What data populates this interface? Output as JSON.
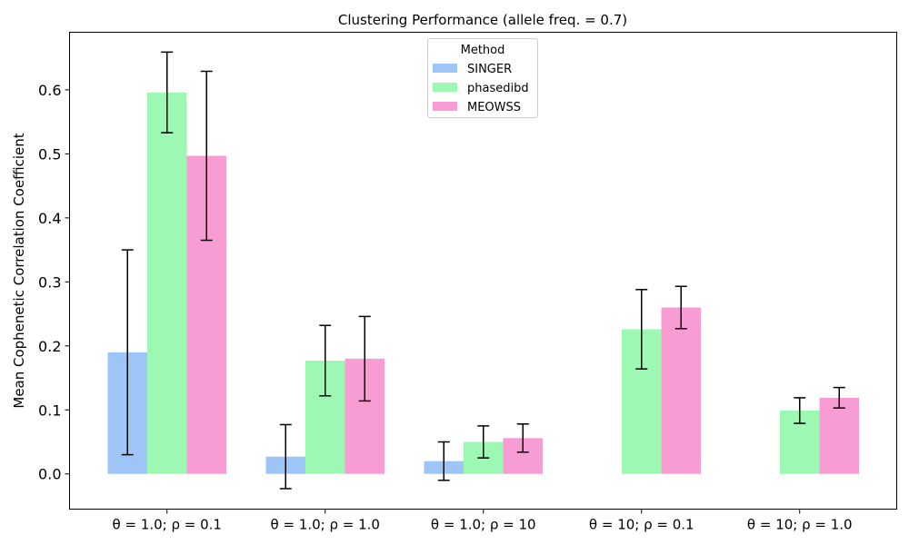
{
  "chart_data": {
    "type": "bar",
    "title": "Clustering Performance (allele freq. = 0.7)",
    "xlabel": "",
    "ylabel": "Mean Cophenetic Correlation Coefficient",
    "ylim": [
      -0.055,
      0.69
    ],
    "yticks": [
      0.0,
      0.1,
      0.2,
      0.3,
      0.4,
      0.5,
      0.6
    ],
    "ytick_labels": [
      "0.0",
      "0.1",
      "0.2",
      "0.3",
      "0.4",
      "0.5",
      "0.6"
    ],
    "categories": [
      "θ = 1.0; ρ = 0.1",
      "θ = 1.0; ρ = 1.0",
      "θ = 1.0; ρ = 10",
      "θ = 10; ρ = 0.1",
      "θ = 10; ρ = 1.0"
    ],
    "legend_title": "Method",
    "legend_position": "top-center",
    "grid": false,
    "series": [
      {
        "name": "SINGER",
        "color": "#9ec5f8",
        "values": [
          0.19,
          0.027,
          0.02,
          null,
          null
        ],
        "errors": [
          0.16,
          0.05,
          0.03,
          null,
          null
        ]
      },
      {
        "name": "phasedibd",
        "color": "#9cf8b3",
        "values": [
          0.596,
          0.177,
          0.05,
          0.226,
          0.099
        ],
        "errors": [
          0.063,
          0.055,
          0.025,
          0.062,
          0.02
        ]
      },
      {
        "name": "MEOWSS",
        "color": "#f79dd3",
        "values": [
          0.497,
          0.18,
          0.056,
          0.26,
          0.119
        ],
        "errors": [
          0.132,
          0.066,
          0.022,
          0.033,
          0.016
        ]
      }
    ]
  }
}
